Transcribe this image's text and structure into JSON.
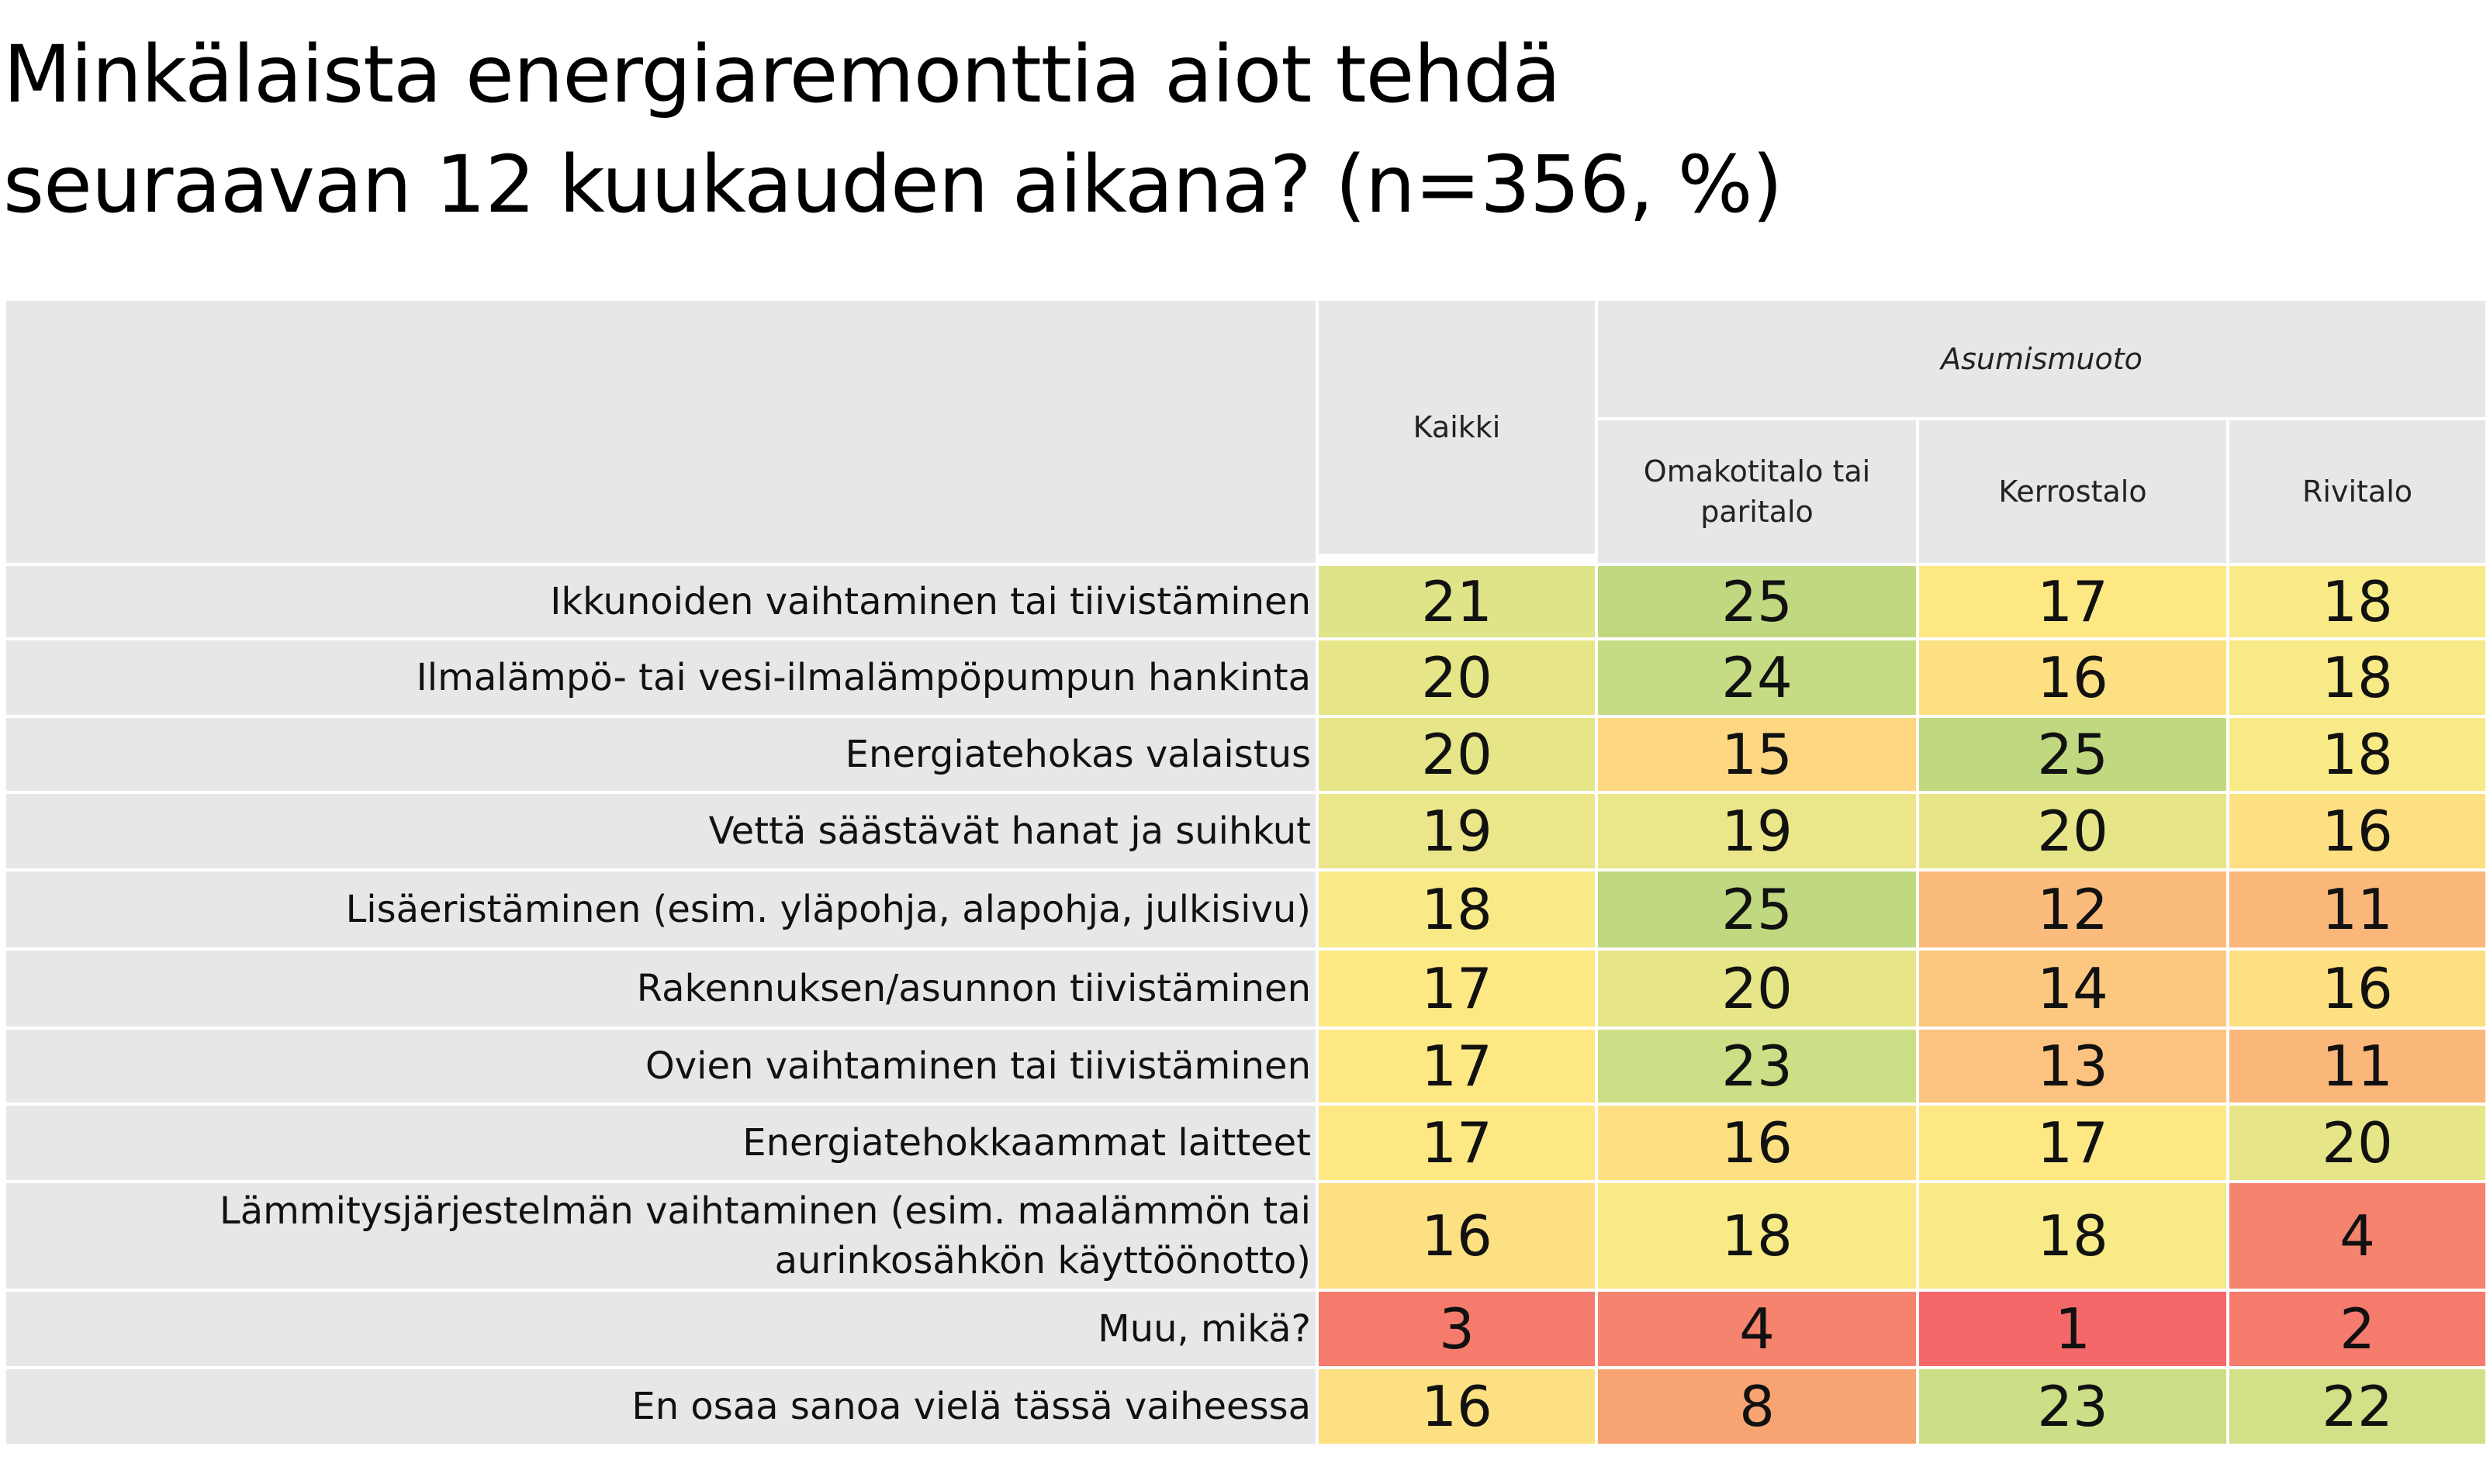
{
  "title": {
    "line1": "Minkälaista energiaremonttia aiot tehdä",
    "line2": "seuraavan 12 kuukauden aikana? (n=356, %)"
  },
  "colors": {
    "header_bg": "#e6e7e9",
    "scale": [
      "#f4766a",
      "#f89a6e",
      "#fcc27f",
      "#fde07f",
      "#fdea84",
      "#e6e689",
      "#c7dc84"
    ]
  },
  "chart_data": {
    "type": "table",
    "title": "Minkälaista energiaremonttia aiot tehdä seuraavan 12 kuukauden aikana? (n=356, %)",
    "group_header": "Asumismuoto",
    "columns": [
      "Kaikki",
      "Omakotitalo tai paritalo",
      "Kerrostalo",
      "Rivitalo"
    ],
    "rows": [
      {
        "label": "Ikkunoiden vaihtaminen tai tiivistäminen",
        "values": [
          21,
          25,
          17,
          18
        ]
      },
      {
        "label": "Ilmalämpö- tai vesi-ilmalämpöpumpun hankinta",
        "values": [
          20,
          24,
          16,
          18
        ]
      },
      {
        "label": "Energiatehokas valaistus",
        "values": [
          20,
          15,
          25,
          18
        ]
      },
      {
        "label": "Vettä säästävät hanat ja suihkut",
        "values": [
          19,
          19,
          20,
          16
        ]
      },
      {
        "label": "Lisäeristäminen (esim. yläpohja, alapohja, julkisivu)",
        "values": [
          18,
          25,
          12,
          11
        ]
      },
      {
        "label": "Rakennuksen/asunnon tiivistäminen",
        "values": [
          17,
          20,
          14,
          16
        ]
      },
      {
        "label": "Ovien vaihtaminen tai tiivistäminen",
        "values": [
          17,
          23,
          13,
          11
        ]
      },
      {
        "label": "Energiatehokkaammat laitteet",
        "values": [
          17,
          16,
          17,
          20
        ]
      },
      {
        "label": "Lämmitysjärjestelmän vaihtaminen (esim. maalämmön tai aurinkosähkön käyttöönotto)",
        "values": [
          16,
          18,
          18,
          4
        ]
      },
      {
        "label": "Muu, mikä?",
        "values": [
          3,
          4,
          1,
          2
        ]
      },
      {
        "label": "En osaa sanoa vielä tässä vaiheessa",
        "values": [
          16,
          8,
          23,
          22
        ]
      }
    ]
  }
}
